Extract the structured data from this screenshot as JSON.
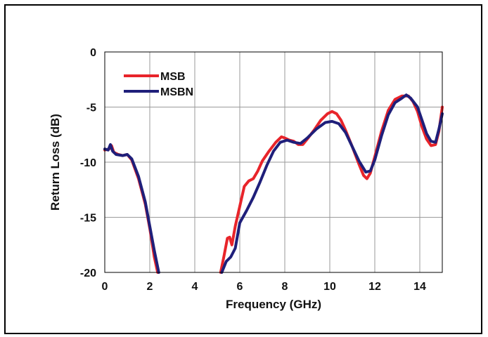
{
  "chart_data": {
    "type": "line",
    "title": "",
    "xlabel": "Frequency (GHz)",
    "ylabel": "Return Loss (dB)",
    "xlim": [
      0,
      15
    ],
    "ylim": [
      -20,
      0
    ],
    "xticks": [
      0,
      2,
      4,
      6,
      8,
      10,
      12,
      14
    ],
    "yticks": [
      0,
      -5,
      -10,
      -15,
      -20
    ],
    "xtick_labels": [
      "0",
      "2",
      "4",
      "6",
      "8",
      "10",
      "12",
      "14"
    ],
    "ytick_labels": [
      "0",
      "-5",
      "-10",
      "-15",
      "-20"
    ],
    "grid": true,
    "legend_position": "top-left",
    "series": [
      {
        "name": "MSB",
        "color": "#e8242a",
        "points": [
          [
            0,
            -8.9
          ],
          [
            0.2,
            -8.8
          ],
          [
            0.3,
            -8.5
          ],
          [
            0.4,
            -9.1
          ],
          [
            0.6,
            -9.3
          ],
          [
            0.8,
            -9.4
          ],
          [
            1.0,
            -9.3
          ],
          [
            1.2,
            -9.8
          ],
          [
            1.5,
            -11.5
          ],
          [
            1.8,
            -13.8
          ],
          [
            2.0,
            -16.0
          ],
          [
            2.2,
            -18.6
          ],
          [
            2.35,
            -20.0
          ],
          null,
          [
            5.15,
            -20.0
          ],
          [
            5.3,
            -18.5
          ],
          [
            5.45,
            -16.9
          ],
          [
            5.55,
            -16.8
          ],
          [
            5.65,
            -17.5
          ],
          [
            5.8,
            -15.8
          ],
          [
            6.0,
            -14.0
          ],
          [
            6.2,
            -12.2
          ],
          [
            6.4,
            -11.7
          ],
          [
            6.6,
            -11.5
          ],
          [
            6.8,
            -10.8
          ],
          [
            7.0,
            -9.9
          ],
          [
            7.3,
            -9.0
          ],
          [
            7.6,
            -8.2
          ],
          [
            7.85,
            -7.7
          ],
          [
            8.0,
            -7.8
          ],
          [
            8.2,
            -8.0
          ],
          [
            8.4,
            -8.1
          ],
          [
            8.6,
            -8.4
          ],
          [
            8.8,
            -8.4
          ],
          [
            9.0,
            -7.9
          ],
          [
            9.3,
            -7.1
          ],
          [
            9.6,
            -6.2
          ],
          [
            9.9,
            -5.6
          ],
          [
            10.1,
            -5.4
          ],
          [
            10.3,
            -5.6
          ],
          [
            10.5,
            -6.2
          ],
          [
            10.7,
            -7.1
          ],
          [
            11.0,
            -8.6
          ],
          [
            11.3,
            -10.2
          ],
          [
            11.5,
            -11.2
          ],
          [
            11.65,
            -11.5
          ],
          [
            11.8,
            -11.0
          ],
          [
            12.0,
            -9.5
          ],
          [
            12.3,
            -7.2
          ],
          [
            12.6,
            -5.3
          ],
          [
            12.9,
            -4.3
          ],
          [
            13.2,
            -4.0
          ],
          [
            13.5,
            -4.0
          ],
          [
            13.7,
            -4.5
          ],
          [
            13.9,
            -5.4
          ],
          [
            14.1,
            -6.8
          ],
          [
            14.3,
            -7.9
          ],
          [
            14.5,
            -8.5
          ],
          [
            14.7,
            -8.4
          ],
          [
            14.85,
            -7.2
          ],
          [
            15.0,
            -5.0
          ]
        ]
      },
      {
        "name": "MSBN",
        "color": "#1f1f7a",
        "points": [
          [
            0,
            -8.8
          ],
          [
            0.15,
            -8.9
          ],
          [
            0.25,
            -8.4
          ],
          [
            0.35,
            -9.0
          ],
          [
            0.5,
            -9.3
          ],
          [
            0.8,
            -9.4
          ],
          [
            1.0,
            -9.3
          ],
          [
            1.2,
            -9.7
          ],
          [
            1.5,
            -11.3
          ],
          [
            1.8,
            -13.6
          ],
          [
            2.0,
            -15.8
          ],
          [
            2.2,
            -18.0
          ],
          [
            2.4,
            -20.0
          ],
          null,
          [
            5.2,
            -20.0
          ],
          [
            5.4,
            -19.0
          ],
          [
            5.6,
            -18.6
          ],
          [
            5.8,
            -17.8
          ],
          [
            6.0,
            -15.5
          ],
          [
            6.3,
            -14.4
          ],
          [
            6.6,
            -13.2
          ],
          [
            6.9,
            -11.8
          ],
          [
            7.2,
            -10.3
          ],
          [
            7.5,
            -9.0
          ],
          [
            7.8,
            -8.2
          ],
          [
            8.1,
            -8.0
          ],
          [
            8.4,
            -8.2
          ],
          [
            8.7,
            -8.3
          ],
          [
            9.0,
            -7.8
          ],
          [
            9.4,
            -7.0
          ],
          [
            9.8,
            -6.4
          ],
          [
            10.1,
            -6.3
          ],
          [
            10.4,
            -6.5
          ],
          [
            10.7,
            -7.3
          ],
          [
            11.0,
            -8.6
          ],
          [
            11.3,
            -9.9
          ],
          [
            11.6,
            -10.9
          ],
          [
            11.8,
            -10.8
          ],
          [
            12.0,
            -9.8
          ],
          [
            12.3,
            -7.6
          ],
          [
            12.6,
            -5.7
          ],
          [
            12.9,
            -4.6
          ],
          [
            13.2,
            -4.2
          ],
          [
            13.4,
            -3.9
          ],
          [
            13.6,
            -4.2
          ],
          [
            13.9,
            -5.0
          ],
          [
            14.1,
            -6.2
          ],
          [
            14.3,
            -7.4
          ],
          [
            14.5,
            -8.1
          ],
          [
            14.7,
            -8.2
          ],
          [
            14.85,
            -7.0
          ],
          [
            15.0,
            -5.6
          ]
        ]
      }
    ]
  }
}
